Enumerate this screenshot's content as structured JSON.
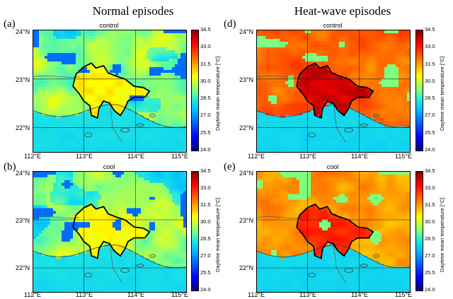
{
  "columns": {
    "left": "Normal episodes",
    "right": "Heat-wave episodes"
  },
  "panels": [
    {
      "label": "(a)",
      "subtitle": "control",
      "regime": "normal"
    },
    {
      "label": "(d)",
      "subtitle": "control",
      "regime": "heat-strong"
    },
    {
      "label": "(b)",
      "subtitle": "cool",
      "regime": "normal"
    },
    {
      "label": "(e)",
      "subtitle": "cool",
      "regime": "heat-mild"
    }
  ],
  "axes": {
    "lat_ticks": [
      "24°N",
      "23°N",
      "22°N"
    ],
    "lon_ticks": [
      "112°E",
      "113°E",
      "114°E",
      "115°E"
    ]
  },
  "colorbar": {
    "label": "Daytime mean temperature [°C]",
    "ticks": [
      "34.5",
      "33.0",
      "31.5",
      "30.0",
      "28.5",
      "27.0",
      "25.5",
      "24.0"
    ],
    "range": [
      24.0,
      34.5
    ],
    "colormap": "jet"
  }
}
